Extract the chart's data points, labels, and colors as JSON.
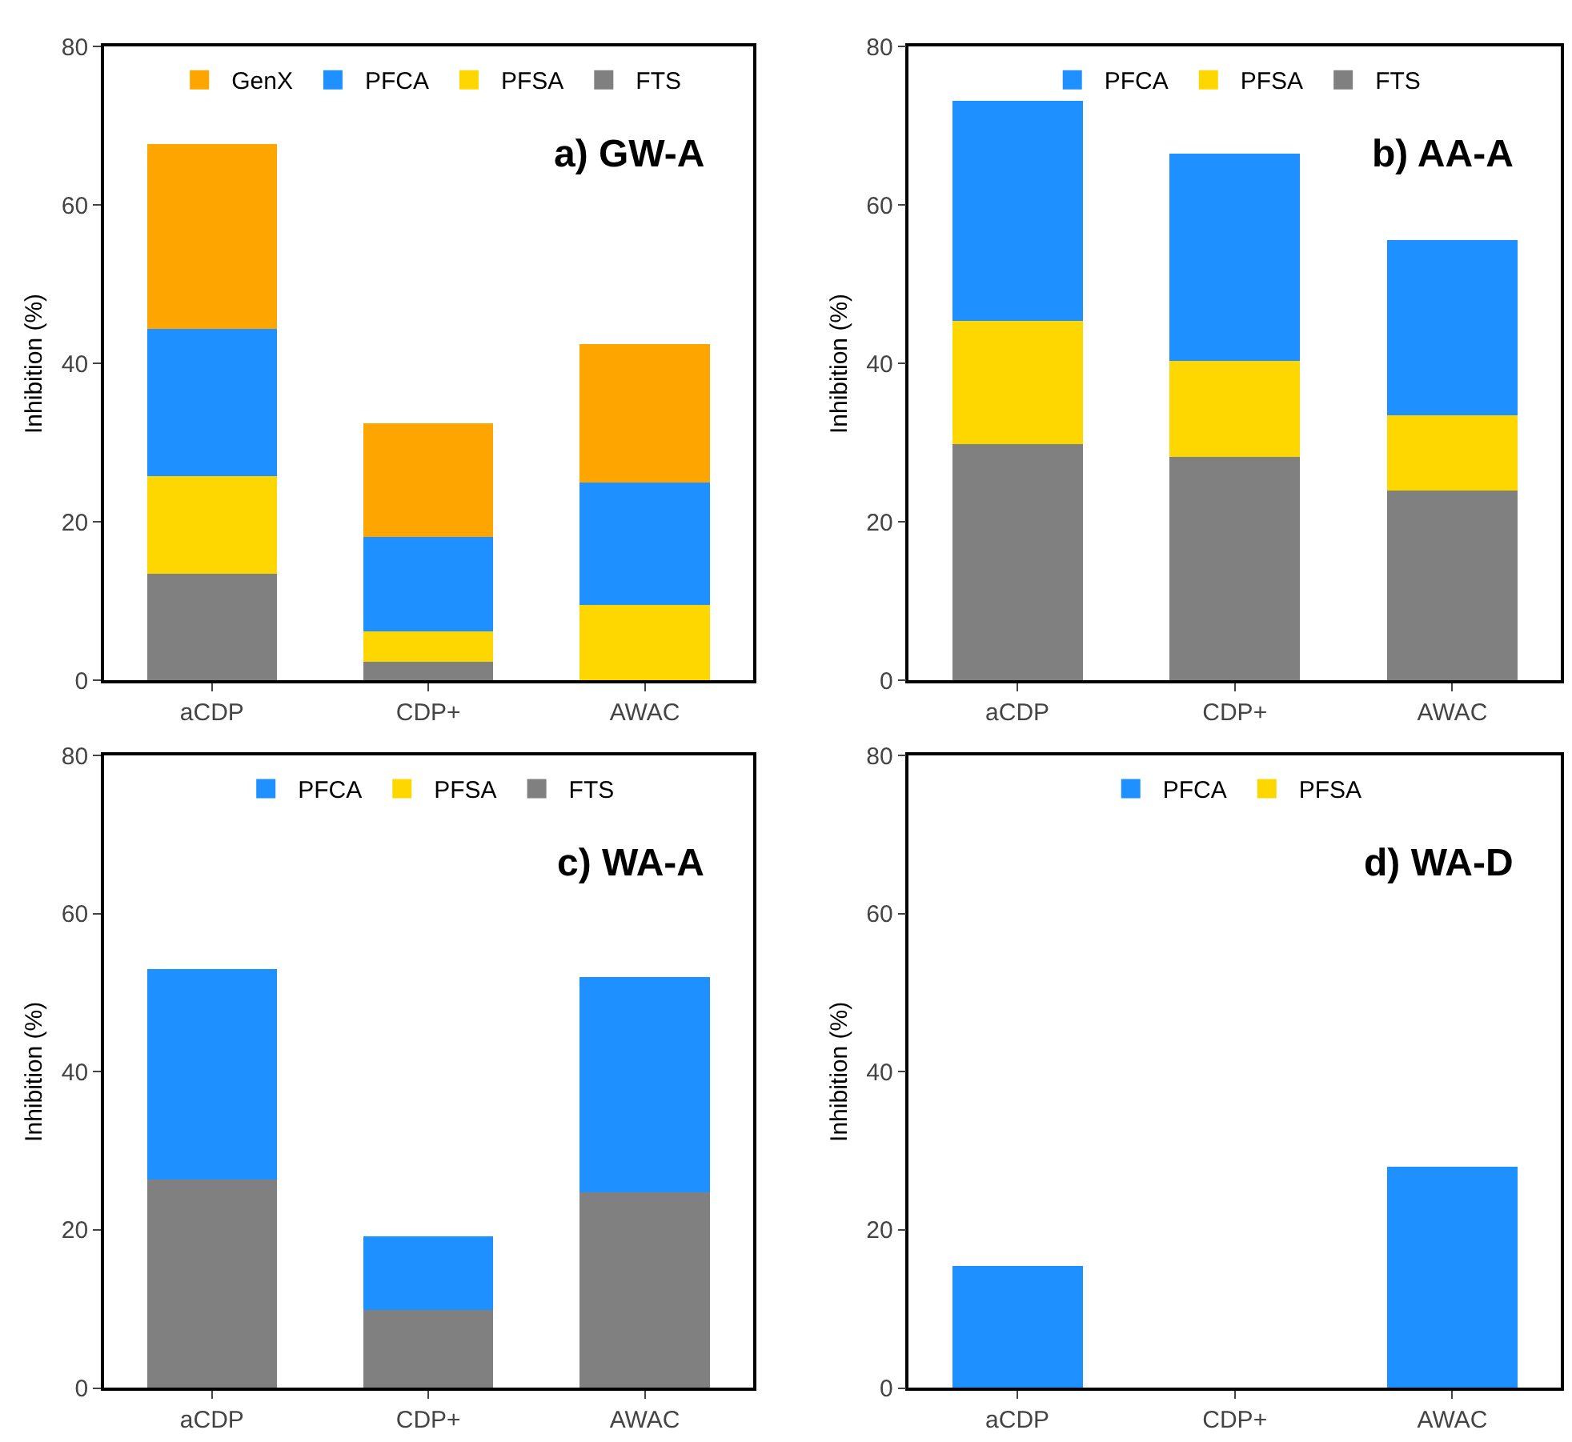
{
  "chart_data": [
    {
      "type": "bar",
      "title": "a) GW-A",
      "ylabel": "Inhibition (%)",
      "categories": [
        "aCDP",
        "CDP+",
        "AWAC"
      ],
      "stacked": true,
      "ylim": [
        0,
        80
      ],
      "yticks": [
        0,
        20,
        40,
        60,
        80
      ],
      "legend": "top",
      "series": [
        {
          "name": "FTS",
          "color": "#808080",
          "values": [
            13.5,
            2.4,
            0
          ]
        },
        {
          "name": "PFSA",
          "color": "#ffd700",
          "values": [
            12.3,
            3.8,
            9.5
          ]
        },
        {
          "name": "PFCA",
          "color": "#1e90ff",
          "values": [
            18.6,
            11.9,
            15.5
          ]
        },
        {
          "name": "GenX",
          "color": "#ffa500",
          "values": [
            23.3,
            14.4,
            17.5
          ]
        }
      ]
    },
    {
      "type": "bar",
      "title": "b) AA-A",
      "ylabel": "Inhibition (%)",
      "categories": [
        "aCDP",
        "CDP+",
        "AWAC"
      ],
      "stacked": true,
      "ylim": [
        0,
        80
      ],
      "yticks": [
        0,
        20,
        40,
        60,
        80
      ],
      "legend": "top",
      "series": [
        {
          "name": "FTS",
          "color": "#808080",
          "values": [
            29.8,
            28.2,
            24.0
          ]
        },
        {
          "name": "PFSA",
          "color": "#ffd700",
          "values": [
            15.6,
            12.1,
            9.5
          ]
        },
        {
          "name": "PFCA",
          "color": "#1e90ff",
          "values": [
            27.8,
            26.2,
            22.1
          ]
        }
      ]
    },
    {
      "type": "bar",
      "title": "c) WA-A",
      "ylabel": "Inhibition (%)",
      "categories": [
        "aCDP",
        "CDP+",
        "AWAC"
      ],
      "stacked": true,
      "ylim": [
        0,
        80
      ],
      "yticks": [
        0,
        20,
        40,
        60,
        80
      ],
      "legend": "top",
      "series": [
        {
          "name": "FTS",
          "color": "#808080",
          "values": [
            26.4,
            9.9,
            24.8
          ]
        },
        {
          "name": "PFSA",
          "color": "#ffd700",
          "values": [
            0,
            0,
            0
          ]
        },
        {
          "name": "PFCA",
          "color": "#1e90ff",
          "values": [
            26.6,
            9.3,
            27.2
          ]
        }
      ]
    },
    {
      "type": "bar",
      "title": "d) WA-D",
      "ylabel": "Inhibition (%)",
      "categories": [
        "aCDP",
        "CDP+",
        "AWAC"
      ],
      "stacked": true,
      "ylim": [
        0,
        80
      ],
      "yticks": [
        0,
        20,
        40,
        60,
        80
      ],
      "legend": "top",
      "series": [
        {
          "name": "PFSA",
          "color": "#ffd700",
          "values": [
            0,
            0,
            0
          ]
        },
        {
          "name": "PFCA",
          "color": "#1e90ff",
          "values": [
            15.4,
            0,
            28.0
          ]
        }
      ]
    }
  ]
}
